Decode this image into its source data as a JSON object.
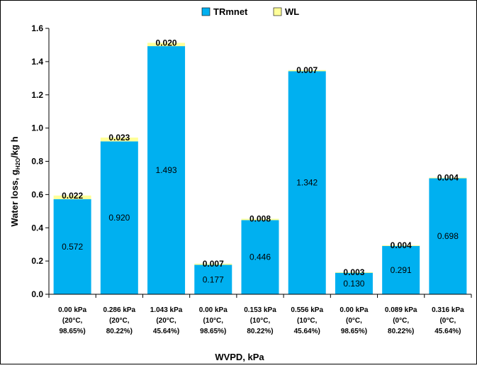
{
  "chart_data": {
    "type": "bar",
    "stacked": true,
    "xlabel": "WVPD, kPa",
    "ylabel": "Water loss, gₕ₂ₒ/kg h",
    "ylabel_parts": [
      "Water loss, g",
      "H2O",
      "/kg h"
    ],
    "ylim": [
      0,
      1.6
    ],
    "yticks": [
      "0.0",
      "0.2",
      "0.4",
      "0.6",
      "0.8",
      "1.0",
      "1.2",
      "1.4",
      "1.6"
    ],
    "grid": false,
    "legend_position": "top",
    "categories": [
      [
        "0.00 kPa",
        "(20°C,",
        "98.65%)"
      ],
      [
        "0.286 kPa",
        "(20°C,",
        "80.22%)"
      ],
      [
        "1.043 kPa",
        "(20°C,",
        "45.64%)"
      ],
      [
        "0.00 kPa",
        "(10°C,",
        "98.65%)"
      ],
      [
        "0.153 kPa",
        "(10°C,",
        "80.22%)"
      ],
      [
        "0.556 kPa",
        "(10°C,",
        "45.64%)"
      ],
      [
        "0.00 kPa",
        "(0°C,",
        "98.65%)"
      ],
      [
        "0.089 kPa",
        "(0°C,",
        "80.22%)"
      ],
      [
        "0.316 kPa",
        "(0°C,",
        "45.64%)"
      ]
    ],
    "series": [
      {
        "name": "TRmnet",
        "color": "#00b0f0",
        "values": [
          0.572,
          0.92,
          1.493,
          0.177,
          0.446,
          1.342,
          0.13,
          0.291,
          0.698
        ],
        "labels": [
          "0.572",
          "0.920",
          "1.493",
          "0.177",
          "0.446",
          "1.342",
          "0.130",
          "0.291",
          "0.698"
        ]
      },
      {
        "name": "WL",
        "color": "#ffff99",
        "values": [
          0.022,
          0.023,
          0.02,
          0.007,
          0.008,
          0.007,
          0.003,
          0.004,
          0.004
        ],
        "labels": [
          "0.022",
          "0.023",
          "0.020",
          "0.007",
          "0.008",
          "0.007",
          "0.003",
          "0.004",
          "0.004"
        ]
      }
    ]
  }
}
